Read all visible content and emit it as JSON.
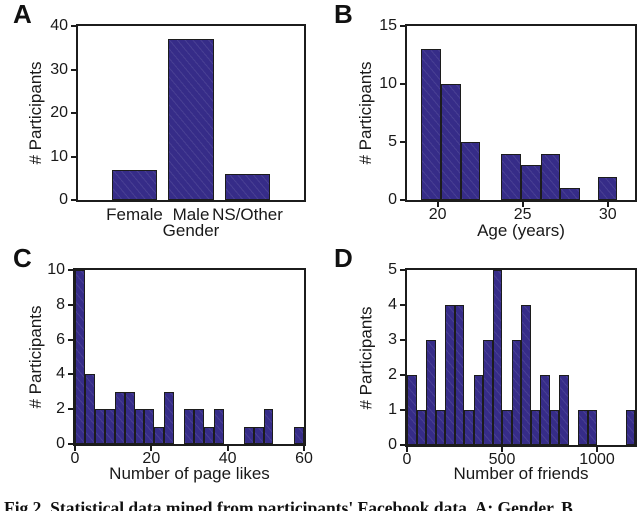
{
  "figure": {
    "caption_visible": "Fig 2. Statistical data mined from participants' Facebook data. A: Gender. B",
    "bar_fill": "#362c88",
    "bar_edge": "#1c1c1c"
  },
  "chart_data": [
    {
      "panel_label": "A",
      "type": "bar",
      "title": "",
      "categories": [
        "Female",
        "Male",
        "NS/Other"
      ],
      "values": [
        7,
        37,
        6
      ],
      "xlabel": "Gender",
      "ylabel": "# Participants",
      "ylim": [
        0,
        40
      ],
      "yticks": [
        0,
        10,
        20,
        30,
        40
      ],
      "grid": false
    },
    {
      "panel_label": "B",
      "type": "histogram",
      "title": "",
      "xlabel": "Age (years)",
      "ylabel": "# Participants",
      "xlim": [
        18.2,
        31.6
      ],
      "ylim": [
        0,
        15
      ],
      "xticks": [
        20,
        25,
        30
      ],
      "yticks": [
        0,
        5,
        10,
        15
      ],
      "grid": false,
      "bins": [
        {
          "x0": 19.05,
          "x1": 20.2,
          "h": 13
        },
        {
          "x0": 20.2,
          "x1": 21.35,
          "h": 10
        },
        {
          "x0": 21.35,
          "x1": 22.5,
          "h": 5
        },
        {
          "x0": 23.75,
          "x1": 24.9,
          "h": 4
        },
        {
          "x0": 24.9,
          "x1": 26.05,
          "h": 3
        },
        {
          "x0": 26.05,
          "x1": 27.2,
          "h": 4
        },
        {
          "x0": 27.2,
          "x1": 28.35,
          "h": 1
        },
        {
          "x0": 29.4,
          "x1": 30.55,
          "h": 2
        }
      ]
    },
    {
      "panel_label": "C",
      "type": "histogram",
      "title": "",
      "xlabel": "Number of page likes",
      "ylabel": "# Participants",
      "xlim": [
        0,
        60
      ],
      "ylim": [
        0,
        10
      ],
      "xticks": [
        0,
        20,
        40,
        60
      ],
      "yticks": [
        0,
        2,
        4,
        6,
        8,
        10
      ],
      "grid": false,
      "bins": [
        {
          "x0": 0,
          "x1": 2.6,
          "h": 10
        },
        {
          "x0": 2.6,
          "x1": 5.2,
          "h": 4
        },
        {
          "x0": 5.2,
          "x1": 7.8,
          "h": 2
        },
        {
          "x0": 7.8,
          "x1": 10.4,
          "h": 2
        },
        {
          "x0": 10.4,
          "x1": 13,
          "h": 3
        },
        {
          "x0": 13,
          "x1": 15.6,
          "h": 3
        },
        {
          "x0": 15.6,
          "x1": 18.2,
          "h": 2
        },
        {
          "x0": 18.2,
          "x1": 20.8,
          "h": 2
        },
        {
          "x0": 20.8,
          "x1": 23.4,
          "h": 1
        },
        {
          "x0": 23.4,
          "x1": 26,
          "h": 3
        },
        {
          "x0": 28.6,
          "x1": 31.2,
          "h": 2
        },
        {
          "x0": 31.2,
          "x1": 33.8,
          "h": 2
        },
        {
          "x0": 33.8,
          "x1": 36.4,
          "h": 1
        },
        {
          "x0": 36.4,
          "x1": 39,
          "h": 2
        },
        {
          "x0": 44.2,
          "x1": 46.8,
          "h": 1
        },
        {
          "x0": 46.8,
          "x1": 49.4,
          "h": 1
        },
        {
          "x0": 49.4,
          "x1": 52,
          "h": 2
        },
        {
          "x0": 57.4,
          "x1": 60,
          "h": 1
        }
      ]
    },
    {
      "panel_label": "D",
      "type": "histogram",
      "title": "",
      "xlabel": "Number of friends",
      "ylabel": "# Participants",
      "xlim": [
        0,
        1200
      ],
      "ylim": [
        0,
        5
      ],
      "xticks": [
        0,
        500,
        1000
      ],
      "yticks": [
        0,
        1,
        2,
        3,
        4,
        5
      ],
      "grid": false,
      "bins": [
        {
          "x0": 0,
          "x1": 50,
          "h": 2
        },
        {
          "x0": 50,
          "x1": 100,
          "h": 1
        },
        {
          "x0": 100,
          "x1": 150,
          "h": 3
        },
        {
          "x0": 150,
          "x1": 200,
          "h": 1
        },
        {
          "x0": 200,
          "x1": 250,
          "h": 4
        },
        {
          "x0": 250,
          "x1": 300,
          "h": 4
        },
        {
          "x0": 300,
          "x1": 350,
          "h": 1
        },
        {
          "x0": 350,
          "x1": 400,
          "h": 2
        },
        {
          "x0": 400,
          "x1": 450,
          "h": 3
        },
        {
          "x0": 450,
          "x1": 500,
          "h": 5
        },
        {
          "x0": 500,
          "x1": 550,
          "h": 1
        },
        {
          "x0": 550,
          "x1": 600,
          "h": 3
        },
        {
          "x0": 600,
          "x1": 650,
          "h": 4
        },
        {
          "x0": 650,
          "x1": 700,
          "h": 1
        },
        {
          "x0": 700,
          "x1": 750,
          "h": 2
        },
        {
          "x0": 750,
          "x1": 800,
          "h": 1
        },
        {
          "x0": 800,
          "x1": 850,
          "h": 2
        },
        {
          "x0": 900,
          "x1": 950,
          "h": 1
        },
        {
          "x0": 950,
          "x1": 1000,
          "h": 1
        },
        {
          "x0": 1150,
          "x1": 1200,
          "h": 1
        }
      ]
    }
  ]
}
